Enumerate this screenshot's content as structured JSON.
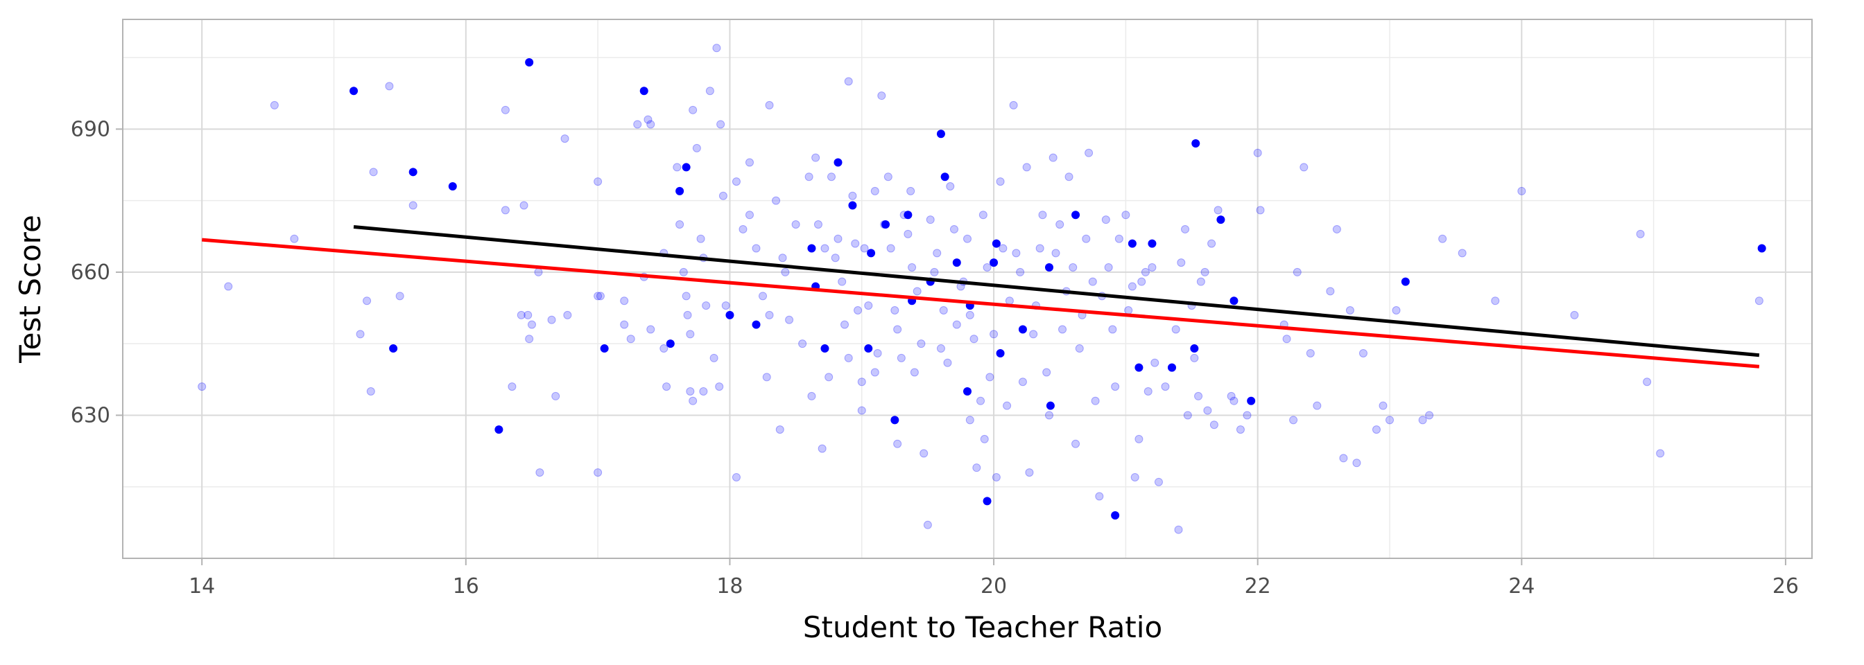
{
  "chart_data": {
    "type": "scatter",
    "title": "",
    "xlabel": "Student to Teacher Ratio",
    "ylabel": "Test Score",
    "xlim": [
      13.4,
      26.2
    ],
    "ylim": [
      600,
      713
    ],
    "x_ticks": [
      14,
      16,
      18,
      20,
      22,
      24,
      26
    ],
    "y_ticks": [
      630,
      660,
      690
    ],
    "grid": true,
    "legend": "none",
    "colors": {
      "background_points": "#0000ff",
      "highlight_points": "#0000ff",
      "line_red": "#ff0000",
      "line_black": "#000000",
      "panel_border": "#b3b3b3",
      "grid_major": "#d9d9d9",
      "grid_minor": "#ebebeb"
    },
    "series": [
      {
        "kind": "points_faded",
        "points": [
          [
            14.0,
            636
          ],
          [
            14.2,
            657
          ],
          [
            14.55,
            695
          ],
          [
            14.7,
            667
          ],
          [
            15.3,
            681
          ],
          [
            15.25,
            654
          ],
          [
            15.2,
            647
          ],
          [
            15.28,
            635
          ],
          [
            15.42,
            699
          ],
          [
            15.5,
            655
          ],
          [
            15.6,
            674
          ],
          [
            16.3,
            694
          ],
          [
            16.3,
            673
          ],
          [
            16.35,
            636
          ],
          [
            16.42,
            651
          ],
          [
            16.44,
            674
          ],
          [
            16.47,
            651
          ],
          [
            16.5,
            649
          ],
          [
            16.48,
            646
          ],
          [
            16.55,
            660
          ],
          [
            16.56,
            618
          ],
          [
            16.65,
            650
          ],
          [
            16.68,
            634
          ],
          [
            16.75,
            688
          ],
          [
            16.77,
            651
          ],
          [
            17.0,
            679
          ],
          [
            17.0,
            655
          ],
          [
            17.02,
            655
          ],
          [
            17.0,
            618
          ],
          [
            17.2,
            654
          ],
          [
            17.2,
            649
          ],
          [
            17.25,
            646
          ],
          [
            17.3,
            691
          ],
          [
            17.35,
            659
          ],
          [
            17.38,
            692
          ],
          [
            17.4,
            691
          ],
          [
            17.4,
            648
          ],
          [
            17.5,
            664
          ],
          [
            17.5,
            644
          ],
          [
            17.52,
            636
          ],
          [
            17.6,
            682
          ],
          [
            17.62,
            670
          ],
          [
            17.65,
            660
          ],
          [
            17.67,
            655
          ],
          [
            17.68,
            651
          ],
          [
            17.7,
            647
          ],
          [
            17.7,
            635
          ],
          [
            17.72,
            633
          ],
          [
            17.72,
            694
          ],
          [
            17.75,
            686
          ],
          [
            17.78,
            667
          ],
          [
            17.8,
            663
          ],
          [
            17.82,
            653
          ],
          [
            17.8,
            635
          ],
          [
            17.85,
            698
          ],
          [
            17.88,
            642
          ],
          [
            17.9,
            707
          ],
          [
            17.92,
            636
          ],
          [
            17.93,
            691
          ],
          [
            17.95,
            676
          ],
          [
            17.97,
            653
          ],
          [
            18.05,
            679
          ],
          [
            18.05,
            617
          ],
          [
            18.1,
            669
          ],
          [
            18.15,
            683
          ],
          [
            18.15,
            672
          ],
          [
            18.2,
            665
          ],
          [
            18.25,
            655
          ],
          [
            18.3,
            651
          ],
          [
            18.28,
            638
          ],
          [
            18.3,
            695
          ],
          [
            18.35,
            675
          ],
          [
            18.38,
            627
          ],
          [
            18.4,
            663
          ],
          [
            18.42,
            660
          ],
          [
            18.45,
            650
          ],
          [
            18.5,
            670
          ],
          [
            18.55,
            645
          ],
          [
            18.6,
            680
          ],
          [
            18.62,
            634
          ],
          [
            18.65,
            684
          ],
          [
            18.67,
            670
          ],
          [
            18.7,
            623
          ],
          [
            18.72,
            665
          ],
          [
            18.75,
            638
          ],
          [
            18.77,
            680
          ],
          [
            18.8,
            663
          ],
          [
            18.82,
            667
          ],
          [
            18.85,
            658
          ],
          [
            18.87,
            649
          ],
          [
            18.9,
            700
          ],
          [
            18.9,
            642
          ],
          [
            18.93,
            676
          ],
          [
            18.95,
            666
          ],
          [
            18.97,
            652
          ],
          [
            19.0,
            637
          ],
          [
            19.0,
            631
          ],
          [
            19.02,
            665
          ],
          [
            19.05,
            653
          ],
          [
            19.1,
            639
          ],
          [
            19.1,
            677
          ],
          [
            19.12,
            643
          ],
          [
            19.15,
            697
          ],
          [
            19.17,
            670
          ],
          [
            19.2,
            680
          ],
          [
            19.22,
            665
          ],
          [
            19.25,
            652
          ],
          [
            19.27,
            648
          ],
          [
            19.27,
            624
          ],
          [
            19.3,
            642
          ],
          [
            19.32,
            672
          ],
          [
            19.35,
            668
          ],
          [
            19.37,
            677
          ],
          [
            19.38,
            661
          ],
          [
            19.4,
            639
          ],
          [
            19.42,
            656
          ],
          [
            19.45,
            645
          ],
          [
            19.47,
            622
          ],
          [
            19.5,
            607
          ],
          [
            19.52,
            671
          ],
          [
            19.55,
            660
          ],
          [
            19.57,
            664
          ],
          [
            19.6,
            644
          ],
          [
            19.62,
            652
          ],
          [
            19.65,
            641
          ],
          [
            19.67,
            678
          ],
          [
            19.7,
            669
          ],
          [
            19.72,
            649
          ],
          [
            19.75,
            657
          ],
          [
            19.77,
            658
          ],
          [
            19.8,
            667
          ],
          [
            19.82,
            651
          ],
          [
            19.82,
            629
          ],
          [
            19.85,
            646
          ],
          [
            19.87,
            619
          ],
          [
            19.9,
            633
          ],
          [
            19.92,
            672
          ],
          [
            19.93,
            625
          ],
          [
            19.95,
            661
          ],
          [
            19.97,
            638
          ],
          [
            20.0,
            647
          ],
          [
            20.02,
            617
          ],
          [
            20.05,
            679
          ],
          [
            20.07,
            665
          ],
          [
            20.1,
            632
          ],
          [
            20.12,
            654
          ],
          [
            20.15,
            695
          ],
          [
            20.17,
            664
          ],
          [
            20.2,
            660
          ],
          [
            20.22,
            637
          ],
          [
            20.25,
            682
          ],
          [
            20.27,
            618
          ],
          [
            20.3,
            647
          ],
          [
            20.32,
            653
          ],
          [
            20.35,
            665
          ],
          [
            20.37,
            672
          ],
          [
            20.4,
            639
          ],
          [
            20.42,
            630
          ],
          [
            20.45,
            684
          ],
          [
            20.47,
            664
          ],
          [
            20.5,
            670
          ],
          [
            20.52,
            648
          ],
          [
            20.55,
            656
          ],
          [
            20.57,
            680
          ],
          [
            20.6,
            661
          ],
          [
            20.62,
            624
          ],
          [
            20.65,
            644
          ],
          [
            20.67,
            651
          ],
          [
            20.7,
            667
          ],
          [
            20.72,
            685
          ],
          [
            20.75,
            658
          ],
          [
            20.77,
            633
          ],
          [
            20.8,
            613
          ],
          [
            20.82,
            655
          ],
          [
            20.85,
            671
          ],
          [
            20.87,
            661
          ],
          [
            20.9,
            648
          ],
          [
            20.92,
            636
          ],
          [
            20.95,
            667
          ],
          [
            21.0,
            672
          ],
          [
            21.02,
            652
          ],
          [
            21.05,
            657
          ],
          [
            21.07,
            617
          ],
          [
            21.1,
            625
          ],
          [
            21.12,
            658
          ],
          [
            21.15,
            660
          ],
          [
            21.17,
            635
          ],
          [
            21.2,
            661
          ],
          [
            21.22,
            641
          ],
          [
            21.25,
            616
          ],
          [
            21.3,
            636
          ],
          [
            21.35,
            640
          ],
          [
            21.38,
            648
          ],
          [
            21.4,
            606
          ],
          [
            21.42,
            662
          ],
          [
            21.45,
            669
          ],
          [
            21.47,
            630
          ],
          [
            21.5,
            653
          ],
          [
            21.52,
            642
          ],
          [
            21.55,
            634
          ],
          [
            21.57,
            658
          ],
          [
            21.6,
            660
          ],
          [
            21.62,
            631
          ],
          [
            21.65,
            666
          ],
          [
            21.67,
            628
          ],
          [
            21.7,
            673
          ],
          [
            21.8,
            634
          ],
          [
            21.82,
            633
          ],
          [
            21.87,
            627
          ],
          [
            21.92,
            630
          ],
          [
            22.0,
            685
          ],
          [
            22.02,
            673
          ],
          [
            22.2,
            649
          ],
          [
            22.22,
            646
          ],
          [
            22.27,
            629
          ],
          [
            22.3,
            660
          ],
          [
            22.35,
            682
          ],
          [
            22.4,
            643
          ],
          [
            22.45,
            632
          ],
          [
            22.55,
            656
          ],
          [
            22.6,
            669
          ],
          [
            22.65,
            621
          ],
          [
            22.7,
            652
          ],
          [
            22.75,
            620
          ],
          [
            22.8,
            643
          ],
          [
            22.9,
            627
          ],
          [
            22.95,
            632
          ],
          [
            23.0,
            629
          ],
          [
            23.05,
            652
          ],
          [
            23.25,
            629
          ],
          [
            23.3,
            630
          ],
          [
            23.4,
            667
          ],
          [
            23.55,
            664
          ],
          [
            23.8,
            654
          ],
          [
            24.0,
            677
          ],
          [
            24.4,
            651
          ],
          [
            24.9,
            668
          ],
          [
            24.95,
            637
          ],
          [
            25.05,
            622
          ],
          [
            25.8,
            654
          ]
        ]
      },
      {
        "kind": "points_highlight",
        "points": [
          [
            15.15,
            698
          ],
          [
            15.45,
            644
          ],
          [
            15.6,
            681
          ],
          [
            15.9,
            678
          ],
          [
            16.25,
            627
          ],
          [
            16.48,
            704
          ],
          [
            17.05,
            644
          ],
          [
            17.35,
            698
          ],
          [
            17.55,
            645
          ],
          [
            17.62,
            677
          ],
          [
            17.67,
            682
          ],
          [
            18.0,
            651
          ],
          [
            18.2,
            649
          ],
          [
            18.62,
            665
          ],
          [
            18.65,
            657
          ],
          [
            18.72,
            644
          ],
          [
            18.82,
            683
          ],
          [
            18.93,
            674
          ],
          [
            19.05,
            644
          ],
          [
            19.07,
            664
          ],
          [
            19.18,
            670
          ],
          [
            19.25,
            629
          ],
          [
            19.35,
            672
          ],
          [
            19.38,
            654
          ],
          [
            19.52,
            658
          ],
          [
            19.6,
            689
          ],
          [
            19.63,
            680
          ],
          [
            19.72,
            662
          ],
          [
            19.8,
            635
          ],
          [
            19.82,
            653
          ],
          [
            19.95,
            612
          ],
          [
            20.0,
            662
          ],
          [
            20.02,
            666
          ],
          [
            20.05,
            643
          ],
          [
            20.22,
            648
          ],
          [
            20.42,
            661
          ],
          [
            20.43,
            632
          ],
          [
            20.62,
            672
          ],
          [
            20.92,
            609
          ],
          [
            21.1,
            640
          ],
          [
            21.05,
            666
          ],
          [
            21.2,
            666
          ],
          [
            21.35,
            640
          ],
          [
            21.53,
            687
          ],
          [
            21.52,
            644
          ],
          [
            21.72,
            671
          ],
          [
            21.82,
            654
          ],
          [
            21.95,
            633
          ],
          [
            23.12,
            658
          ],
          [
            25.82,
            665
          ]
        ]
      },
      {
        "kind": "line",
        "color": "red",
        "x": [
          14.0,
          25.8
        ],
        "y": [
          666.8,
          640.2
        ]
      },
      {
        "kind": "line",
        "color": "black",
        "x": [
          15.15,
          25.8
        ],
        "y": [
          669.5,
          642.6
        ]
      }
    ]
  }
}
